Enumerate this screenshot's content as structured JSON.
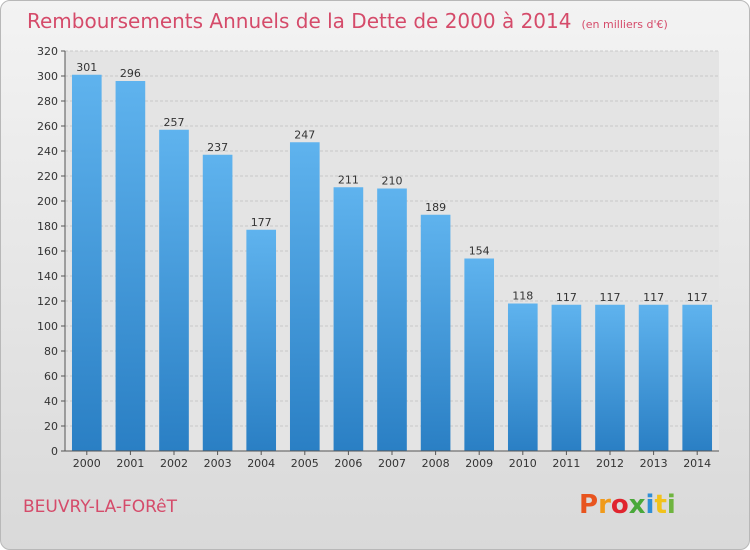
{
  "chart_data": {
    "type": "bar",
    "title": "Remboursements Annuels de la Dette de 2000 à 2014",
    "unit_note": "(en milliers d'€)",
    "categories": [
      "2000",
      "2001",
      "2002",
      "2003",
      "2004",
      "2005",
      "2006",
      "2007",
      "2008",
      "2009",
      "2010",
      "2011",
      "2012",
      "2013",
      "2014"
    ],
    "values": [
      301,
      296,
      257,
      237,
      177,
      247,
      211,
      210,
      189,
      154,
      118,
      117,
      117,
      117,
      117
    ],
    "ylim": [
      0,
      320
    ],
    "yticks": [
      0,
      20,
      40,
      60,
      80,
      100,
      120,
      140,
      160,
      180,
      200,
      220,
      240,
      260,
      280,
      300,
      320
    ],
    "grid": true,
    "bar_color": "#3c95d8"
  },
  "footer": {
    "place": "BEUVRY-LA-FORêT",
    "logo_text": "Proxiti",
    "logo_colors": [
      "#e8541e",
      "#f09a1a",
      "#e0242e",
      "#49a83a",
      "#2f8ed6",
      "#f2c21b",
      "#6fb43f"
    ]
  }
}
